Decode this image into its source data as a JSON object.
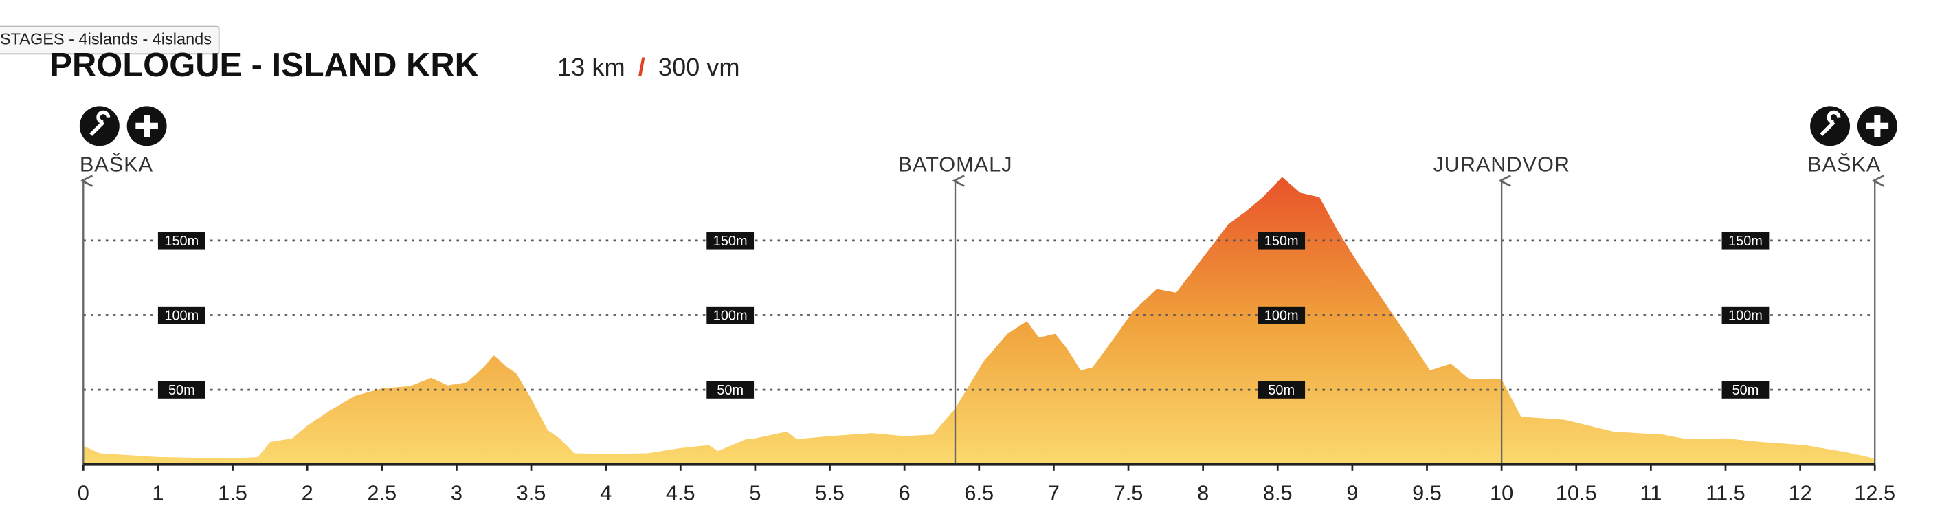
{
  "tooltip": "STAGES - 4islands - 4islands",
  "chart_data": {
    "type": "area",
    "title": "PROLOGUE - ISLAND KRK",
    "distance": "13 km",
    "separator": "/",
    "climb": "300 vm",
    "x": [
      0,
      0.22,
      1,
      1.5,
      1.67,
      1.75,
      1.9,
      2,
      2.15,
      2.32,
      2.5,
      2.69,
      2.83,
      2.94,
      3.07,
      3.18,
      3.25,
      3.34,
      3.4,
      3.5,
      3.61,
      3.69,
      3.79,
      4,
      4.28,
      4.5,
      4.69,
      4.75,
      4.94,
      5,
      5.21,
      5.28,
      5.5,
      5.78,
      6,
      6.19,
      6.34,
      6.53,
      6.69,
      6.82,
      6.9,
      7.01,
      7.09,
      7.18,
      7.26,
      7.4,
      7.53,
      7.69,
      7.82,
      7.98,
      8.17,
      8.28,
      8.4,
      8.53,
      8.65,
      8.78,
      8.9,
      9.03,
      9.2,
      9.37,
      9.52,
      9.66,
      9.78,
      10,
      10.13,
      10.42,
      10.75,
      11.08,
      11.24,
      11.5,
      11.74,
      12.03,
      12.32,
      12.5
    ],
    "values": [
      12.5,
      7.5,
      5,
      4,
      5,
      15,
      17.5,
      26,
      36,
      46,
      51,
      52.5,
      58,
      53,
      55,
      65,
      73,
      65,
      61,
      44,
      23,
      17.5,
      7.5,
      7,
      7.5,
      11,
      13,
      9,
      17,
      17.5,
      22,
      17,
      19,
      21,
      19,
      20,
      37.5,
      69,
      87.5,
      96,
      85,
      87.5,
      77.5,
      63,
      65,
      84,
      102.5,
      117.5,
      115,
      136,
      161,
      169,
      179,
      192.5,
      182,
      179,
      157,
      136,
      111,
      86,
      63,
      67.5,
      57.5,
      57,
      32,
      30,
      22,
      20,
      17,
      17.5,
      15,
      13,
      8,
      4
    ],
    "colors": [
      "#fbd96e",
      "#f0a23c",
      "#e8552a"
    ],
    "ylim": [
      0,
      190
    ],
    "yticks": [
      {
        "value": 50,
        "label": "50m"
      },
      {
        "value": 100,
        "label": "100m"
      },
      {
        "value": 150,
        "label": "150m"
      }
    ],
    "xticks": [
      0,
      1,
      1.5,
      2,
      2.5,
      3,
      3.5,
      4,
      4.5,
      5,
      5.5,
      6,
      6.5,
      7,
      7.5,
      8,
      8.5,
      9,
      9.5,
      10,
      10.5,
      11,
      11.5,
      12,
      12.5
    ],
    "grid": true,
    "locations": [
      {
        "name": "BAŠKA",
        "x": 0
      },
      {
        "name": "BATOMALJ",
        "x": 6.34
      },
      {
        "name": "JURANDVOR",
        "x": 10
      },
      {
        "name": "BAŠKA",
        "x": 12.5
      }
    ]
  }
}
